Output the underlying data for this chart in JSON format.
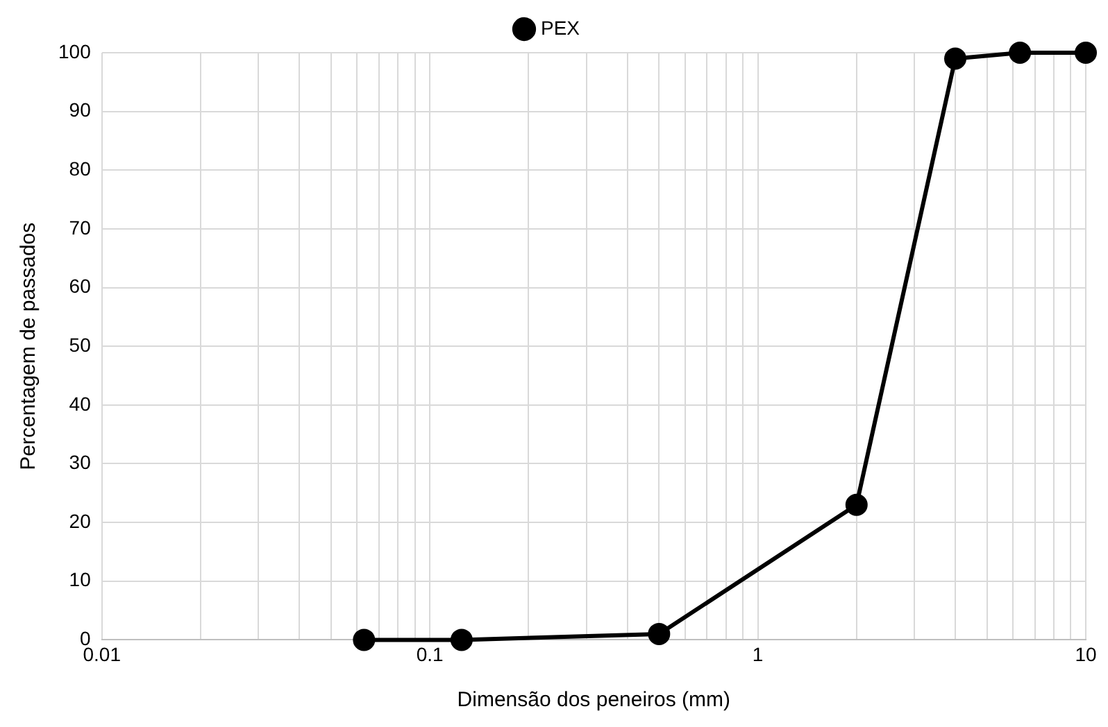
{
  "chart_data": {
    "type": "line",
    "xlabel": "Dimensão dos peneiros (mm)",
    "ylabel": "Percentagem de passados",
    "x": [
      0.063,
      0.125,
      0.5,
      2,
      4,
      6.3,
      10
    ],
    "series": [
      {
        "name": "PEX",
        "color": "#000000",
        "values": [
          0,
          0,
          1,
          23,
          99,
          100,
          100
        ]
      }
    ],
    "log": "x",
    "xlim": [
      0.01,
      10
    ],
    "ylim": [
      0,
      100
    ],
    "xticks": [
      0.01,
      {
        "value": 0.02,
        "label": null
      },
      {
        "value": 0.03,
        "label": null
      },
      {
        "value": 0.04,
        "label": null
      },
      {
        "value": 0.05,
        "label": null
      },
      {
        "value": 0.06,
        "label": null
      },
      {
        "value": 0.07,
        "label": null
      },
      {
        "value": 0.08,
        "label": null
      },
      {
        "value": 0.09,
        "label": null
      },
      0.1,
      {
        "value": 0.2,
        "label": null
      },
      {
        "value": 0.3,
        "label": null
      },
      {
        "value": 0.4,
        "label": null
      },
      {
        "value": 0.5,
        "label": null
      },
      {
        "value": 0.6,
        "label": null
      },
      {
        "value": 0.7,
        "label": null
      },
      {
        "value": 0.8,
        "label": null
      },
      {
        "value": 0.9,
        "label": null
      },
      1,
      {
        "value": 2,
        "label": null
      },
      {
        "value": 3,
        "label": null
      },
      {
        "value": 4,
        "label": null
      },
      {
        "value": 5,
        "label": null
      },
      {
        "value": 6,
        "label": null
      },
      {
        "value": 7,
        "label": null
      },
      {
        "value": 8,
        "label": null
      },
      {
        "value": 9,
        "label": null
      },
      10
    ],
    "yticks": [
      0,
      10,
      20,
      30,
      40,
      50,
      60,
      70,
      80,
      90,
      100
    ],
    "grid": true,
    "legend": "top",
    "marker": "circle",
    "line_style": "solid"
  }
}
